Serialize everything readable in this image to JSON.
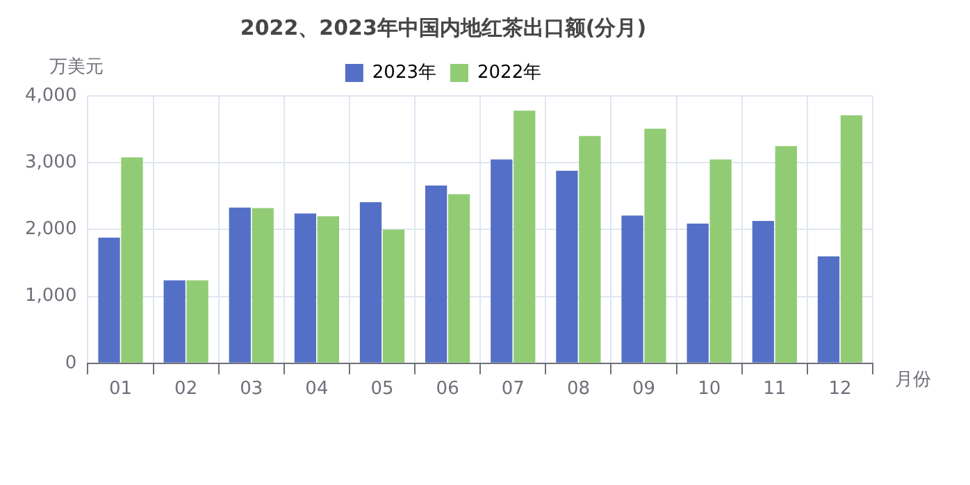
{
  "chart_data": {
    "type": "bar",
    "title": "2022、2023年中国内地红茶出口额(分月)",
    "xlabel": "月份",
    "ylabel": "万美元",
    "categories": [
      "01",
      "02",
      "03",
      "04",
      "05",
      "06",
      "07",
      "08",
      "09",
      "10",
      "11",
      "12"
    ],
    "series": [
      {
        "name": "2023年",
        "color": "#5470c6",
        "values": [
          1880,
          1240,
          2330,
          2240,
          2410,
          2660,
          3050,
          2880,
          2210,
          2090,
          2130,
          1600
        ]
      },
      {
        "name": "2022年",
        "color": "#91cc75",
        "values": [
          3080,
          1240,
          2320,
          2200,
          2000,
          2530,
          3780,
          3400,
          3510,
          3050,
          3250,
          3710
        ]
      }
    ],
    "ylim": [
      0,
      4000
    ],
    "yticks": [
      0,
      {
        "value": 1000,
        "label": "1,000"
      },
      {
        "value": 2000,
        "label": "2,000"
      },
      {
        "value": 3000,
        "label": "3,000"
      },
      {
        "value": 4000,
        "label": "4,000"
      }
    ],
    "grid": true,
    "legend": "top"
  }
}
